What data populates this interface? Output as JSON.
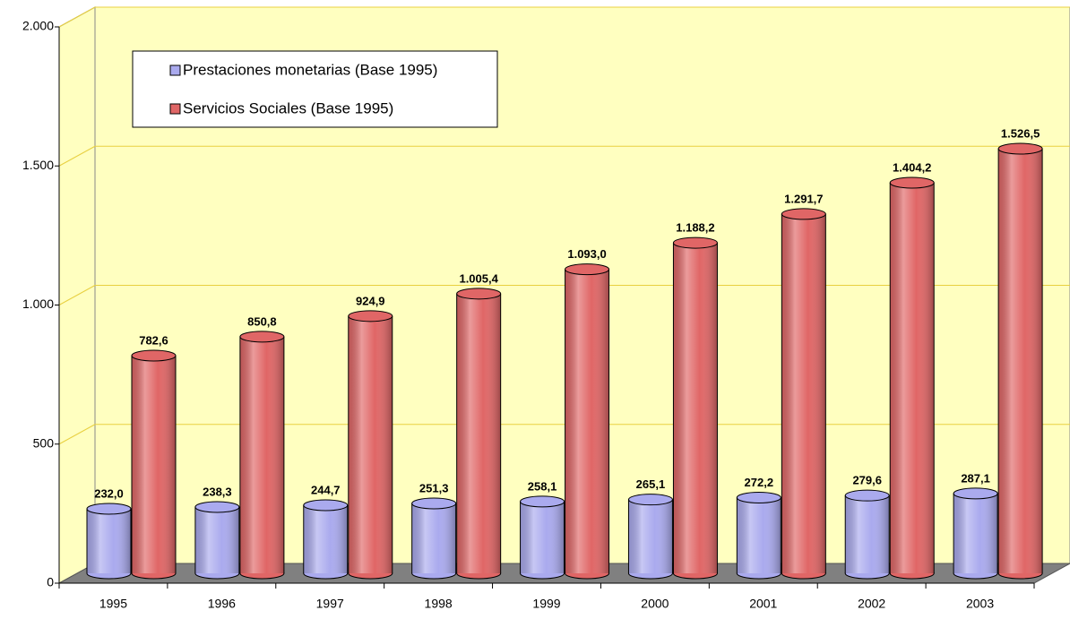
{
  "chart_data": {
    "type": "bar",
    "categories": [
      "1995",
      "1996",
      "1997",
      "1998",
      "1999",
      "2000",
      "2001",
      "2002",
      "2003"
    ],
    "series": [
      {
        "name": "Prestaciones monetarias (Base 1995)",
        "color": "#aaaaee",
        "values": [
          232.0,
          238.3,
          244.7,
          251.3,
          258.1,
          265.1,
          272.2,
          279.6,
          287.1
        ],
        "value_labels": [
          "232,0",
          "238,3",
          "244,7",
          "251,3",
          "258,1",
          "265,1",
          "272,2",
          "279,6",
          "287,1"
        ]
      },
      {
        "name": "Servicios Sociales (Base 1995)",
        "color": "#e06666",
        "values": [
          782.6,
          850.8,
          924.9,
          1005.4,
          1093.0,
          1188.2,
          1291.7,
          1404.2,
          1526.5
        ],
        "value_labels": [
          "782,6",
          "850,8",
          "924,9",
          "1.005,4",
          "1.093,0",
          "1.188,2",
          "1.291,7",
          "1.404,2",
          "1.526,5"
        ]
      }
    ],
    "ylim": [
      0,
      2000
    ],
    "yticks": [
      0,
      500,
      {
        "value": 1000,
        "label": "1.000"
      },
      {
        "value": 1500,
        "label": "1.500"
      },
      {
        "value": 2000,
        "label": "2.000"
      }
    ],
    "grid": true
  }
}
